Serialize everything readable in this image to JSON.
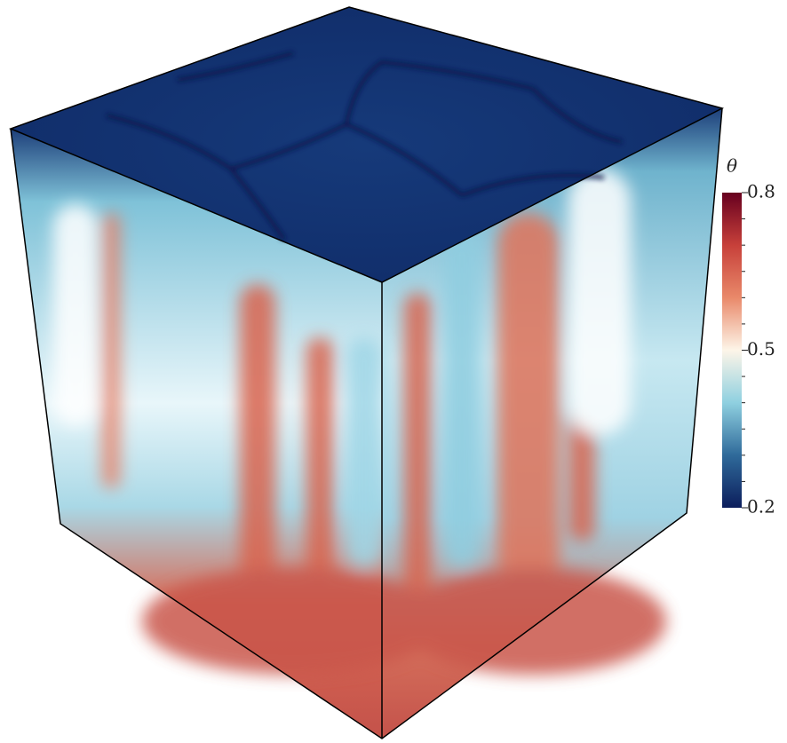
{
  "colorbar": {
    "title": "θ",
    "lim": [
      0.2,
      0.8
    ],
    "ticks": [
      0.2,
      0.5,
      0.8
    ],
    "minor_ticks": [
      0.25,
      0.3,
      0.35,
      0.4,
      0.45,
      0.55,
      0.6,
      0.65,
      0.7,
      0.75
    ],
    "colors": [
      "#0c1e5c",
      "#2f6a9a",
      "#8fd0e0",
      "#fdf5e8",
      "#e9896a",
      "#c7403a",
      "#67001f"
    ]
  }
}
